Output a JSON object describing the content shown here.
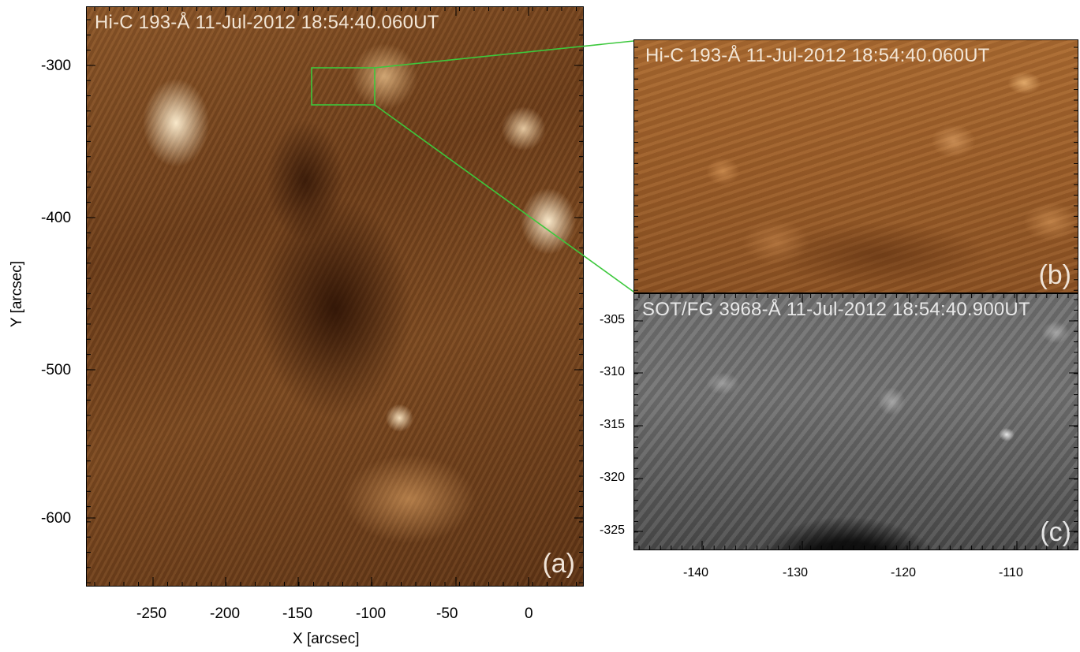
{
  "panel_a": {
    "title": "Hi-C 193-Å 11-Jul-2012 18:54:40.060UT",
    "letter": "(a)",
    "xlabel": "X [arcsec]",
    "ylabel": "Y [arcsec]",
    "xticks": [
      "-250",
      "-200",
      "-150",
      "-100",
      "-50",
      "0"
    ],
    "yticks": [
      "-300",
      "-400",
      "-500",
      "-600"
    ]
  },
  "panel_b": {
    "title": "Hi-C 193-Å 11-Jul-2012 18:54:40.060UT",
    "letter": "(b)"
  },
  "panel_c": {
    "title": "SOT/FG 3968-Å 11-Jul-2012 18:54:40.900UT",
    "letter": "(c)",
    "xticks": [
      "-140",
      "-130",
      "-120",
      "-110"
    ],
    "yticks": [
      "-305",
      "-310",
      "-315",
      "-320",
      "-325"
    ]
  },
  "colors": {
    "zoom_box": "#3cc83c",
    "hic_tint": "#7a4820",
    "sot_tint": "#6f6f6f"
  }
}
